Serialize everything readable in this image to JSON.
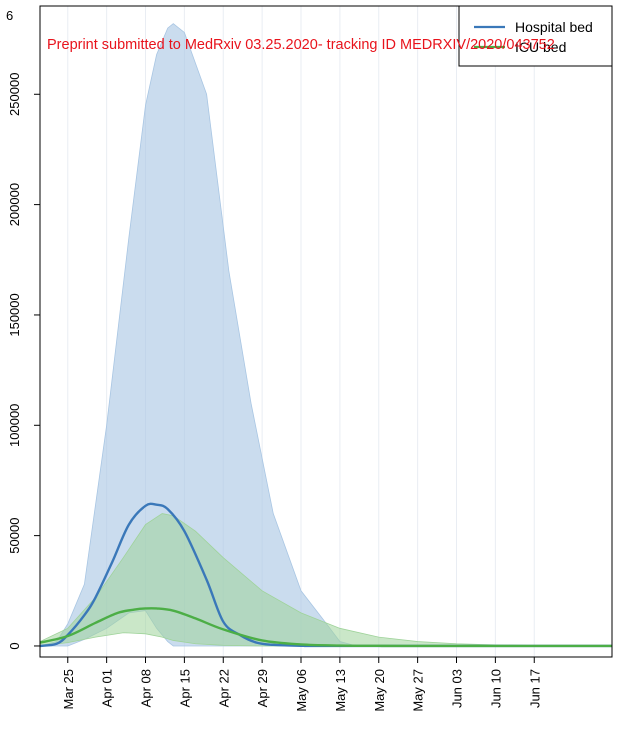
{
  "top_left_label": "6",
  "watermark_text": "Preprint submitted to MedRxiv 03.25.2020- tracking ID MEDRXIV/2020/043752",
  "colors": {
    "hospital_line": "#3a78b9",
    "hospital_band": "#a9c6e3",
    "icu_line": "#4cae46",
    "icu_band": "#9fd39a",
    "grid": "#e9edf3",
    "watermark": "#e8131c"
  },
  "chart_data": {
    "type": "line",
    "title": "",
    "xlabel": "",
    "ylabel": "",
    "x_axis": "date",
    "xlim": [
      "2020-03-20",
      "2020-07-01"
    ],
    "ylim": [
      -5000,
      290000
    ],
    "y_ticks": [
      0,
      50000,
      100000,
      150000,
      200000,
      250000
    ],
    "y_tick_labels": [
      "0",
      "50000",
      "100000",
      "150000",
      "200000",
      "250000"
    ],
    "x_ticks": [
      "2020-03-25",
      "2020-04-01",
      "2020-04-08",
      "2020-04-15",
      "2020-04-22",
      "2020-04-29",
      "2020-05-06",
      "2020-05-13",
      "2020-05-20",
      "2020-05-27",
      "2020-06-03",
      "2020-06-10",
      "2020-06-17"
    ],
    "x_tick_labels": [
      "Mar 25",
      "Apr 01",
      "Apr 08",
      "Apr 15",
      "Apr 22",
      "Apr 29",
      "May 06",
      "May 13",
      "May 20",
      "May 27",
      "Jun 03",
      "Jun 10",
      "Jun 17"
    ],
    "grid": true,
    "legend": {
      "position": "top-right",
      "entries": [
        "Hospital bed",
        "ICU bed"
      ]
    },
    "series": [
      {
        "name": "Hospital bed",
        "color": "#3a78b9",
        "x": [
          "2020-03-20",
          "2020-03-23",
          "2020-03-25",
          "2020-03-28",
          "2020-03-30",
          "2020-04-02",
          "2020-04-05",
          "2020-04-08",
          "2020-04-10",
          "2020-04-12",
          "2020-04-15",
          "2020-04-19",
          "2020-04-22",
          "2020-04-25",
          "2020-04-28",
          "2020-05-01",
          "2020-05-06",
          "2020-05-13",
          "2020-07-01"
        ],
        "y": [
          0,
          1000,
          5000,
          14000,
          22000,
          38000,
          55000,
          63500,
          64000,
          62000,
          52000,
          30000,
          11000,
          5000,
          1500,
          500,
          100,
          0,
          0
        ]
      },
      {
        "name": "ICU bed",
        "color": "#4cae46",
        "x": [
          "2020-03-20",
          "2020-03-25",
          "2020-03-30",
          "2020-04-03",
          "2020-04-06",
          "2020-04-08",
          "2020-04-10",
          "2020-04-13",
          "2020-04-17",
          "2020-04-22",
          "2020-04-29",
          "2020-05-06",
          "2020-05-13",
          "2020-05-20",
          "2020-05-27",
          "2020-06-03",
          "2020-07-01"
        ],
        "y": [
          1500,
          4500,
          10500,
          15000,
          16500,
          17000,
          17000,
          16000,
          12500,
          7500,
          2500,
          700,
          200,
          50,
          0,
          0,
          0
        ]
      }
    ],
    "bands": [
      {
        "series": "Hospital bed",
        "color": "#a9c6e3",
        "x": [
          "2020-03-20",
          "2020-03-23",
          "2020-03-25",
          "2020-03-28",
          "2020-04-01",
          "2020-04-05",
          "2020-04-08",
          "2020-04-10",
          "2020-04-12",
          "2020-04-13",
          "2020-04-15",
          "2020-04-19",
          "2020-04-23",
          "2020-04-27",
          "2020-05-01",
          "2020-05-06",
          "2020-05-10",
          "2020-05-13",
          "2020-05-16",
          "2020-07-01"
        ],
        "upper": [
          0,
          2000,
          10000,
          28000,
          100000,
          185000,
          245000,
          268000,
          280000,
          282000,
          278000,
          250000,
          170000,
          110000,
          60000,
          25000,
          12000,
          2000,
          0,
          0
        ],
        "lower": [
          0,
          0,
          0,
          3000,
          8000,
          15000,
          16000,
          8000,
          2000,
          0,
          0,
          0,
          0,
          0,
          0,
          0,
          0,
          0,
          0,
          0
        ]
      },
      {
        "series": "ICU bed",
        "color": "#9fd39a",
        "x": [
          "2020-03-20",
          "2020-03-25",
          "2020-03-30",
          "2020-04-04",
          "2020-04-08",
          "2020-04-11",
          "2020-04-13",
          "2020-04-17",
          "2020-04-22",
          "2020-04-29",
          "2020-05-06",
          "2020-05-13",
          "2020-05-20",
          "2020-05-27",
          "2020-06-03",
          "2020-06-10",
          "2020-06-17",
          "2020-07-01"
        ],
        "upper": [
          2000,
          8000,
          22000,
          40000,
          55000,
          60000,
          59000,
          52000,
          40000,
          25000,
          15000,
          8000,
          4000,
          2000,
          1000,
          500,
          200,
          0
        ],
        "lower": [
          0,
          1500,
          4000,
          6000,
          5500,
          4000,
          2500,
          1000,
          300,
          0,
          0,
          0,
          0,
          0,
          0,
          0,
          0,
          0
        ]
      }
    ]
  }
}
